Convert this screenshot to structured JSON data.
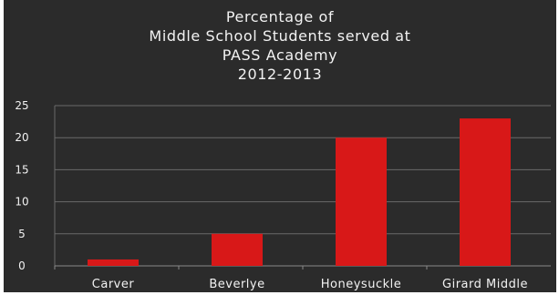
{
  "chart_data": {
    "type": "bar",
    "title_lines": [
      "Percentage of",
      "Middle School Students served  at",
      "PASS Academy",
      "2012-2013"
    ],
    "categories": [
      "Carver",
      "Beverlye",
      "Honeysuckle",
      "Girard Middle"
    ],
    "values": [
      1,
      5,
      20,
      23
    ],
    "yticks": [
      0,
      5,
      10,
      15,
      20,
      25
    ],
    "ylim": [
      0,
      25
    ],
    "grid": true,
    "legend": "none",
    "colors": {
      "background": "#2b2b2b",
      "bar": "#d81818",
      "text": "#f2f2f2",
      "grid": "#6a6a6a"
    }
  }
}
